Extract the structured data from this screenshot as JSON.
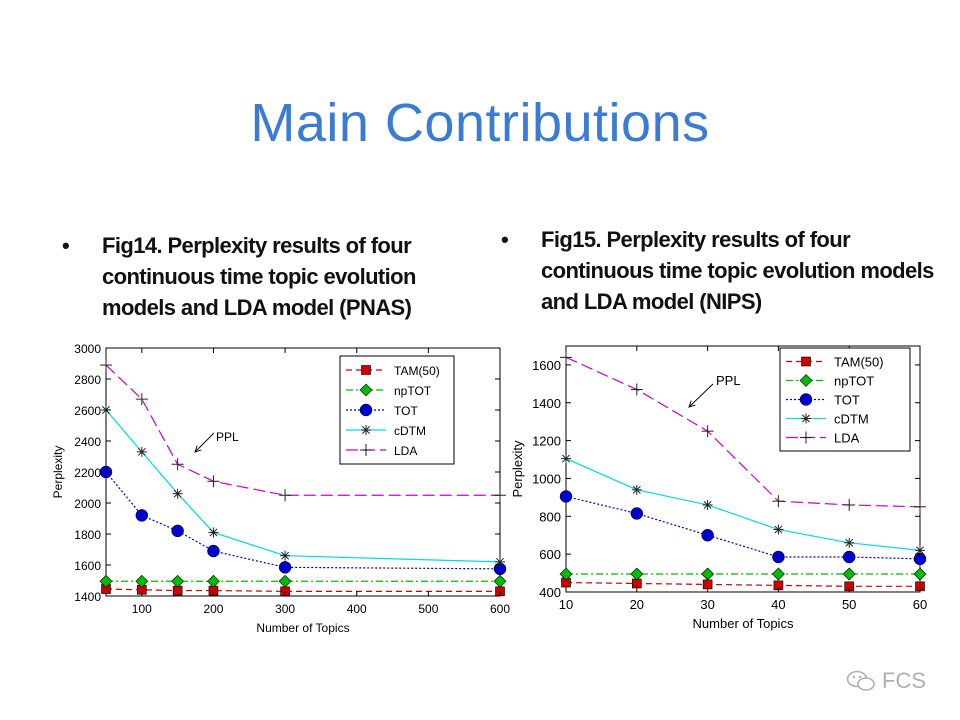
{
  "title": "Main Contributions",
  "captions": [
    {
      "bullet": "•",
      "text": "Fig14. Perplexity results of four continuous time topic evolution models and LDA model (PNAS)"
    },
    {
      "bullet": "•",
      "text": "Fig15. Perplexity results of four continuous time topic evolution models and LDA model (NIPS)"
    }
  ],
  "watermark": "FCS",
  "chart_data": [
    {
      "type": "line",
      "xlabel": "Number of Topics",
      "ylabel": "Perplexity",
      "xlim": [
        50,
        600
      ],
      "ylim": [
        1400,
        3000
      ],
      "xticks": [
        100,
        200,
        300,
        400,
        500,
        600
      ],
      "yticks": [
        1400,
        1600,
        1800,
        2000,
        2200,
        2400,
        2600,
        2800,
        3000
      ],
      "grid": false,
      "legend_position": "top-right",
      "annotation": "PPL",
      "series": [
        {
          "name": "TAM(50)",
          "color": "#cc0000",
          "dash": "dashed",
          "marker": "square",
          "x": [
            50,
            100,
            150,
            200,
            300,
            600
          ],
          "y": [
            1445,
            1440,
            1435,
            1435,
            1430,
            1430
          ]
        },
        {
          "name": "npTOT",
          "color": "#00bb00",
          "dash": "dashdot",
          "marker": "diamond",
          "x": [
            50,
            100,
            150,
            200,
            300,
            600
          ],
          "y": [
            1495,
            1495,
            1495,
            1495,
            1495,
            1495
          ]
        },
        {
          "name": "TOT",
          "color": "#0000cc",
          "dash": "dotted",
          "marker": "circle",
          "x": [
            50,
            100,
            150,
            200,
            300,
            600
          ],
          "y": [
            2200,
            1920,
            1820,
            1690,
            1585,
            1575
          ]
        },
        {
          "name": "cDTM",
          "color": "#00dddd",
          "dash": "solid",
          "marker": "star",
          "x": [
            50,
            100,
            150,
            200,
            300,
            600
          ],
          "y": [
            2600,
            2330,
            2060,
            1810,
            1660,
            1620
          ]
        },
        {
          "name": "LDA",
          "color": "#cc00cc",
          "dash": "longdash",
          "marker": "plus",
          "x": [
            50,
            100,
            150,
            200,
            300,
            600
          ],
          "y": [
            2890,
            2670,
            2250,
            2140,
            2050,
            2050
          ]
        }
      ]
    },
    {
      "type": "line",
      "xlabel": "Number of Topics",
      "ylabel": "Perplexity",
      "xlim": [
        10,
        60
      ],
      "ylim": [
        400,
        1700
      ],
      "xticks": [
        10,
        20,
        30,
        40,
        50,
        60
      ],
      "yticks": [
        400,
        600,
        800,
        1000,
        1200,
        1400,
        1600
      ],
      "grid": false,
      "legend_position": "top-right",
      "annotation": "PPL",
      "series": [
        {
          "name": "TAM(50)",
          "color": "#cc0000",
          "dash": "dashed",
          "marker": "square",
          "x": [
            10,
            20,
            30,
            40,
            50,
            60
          ],
          "y": [
            450,
            445,
            440,
            435,
            430,
            430
          ]
        },
        {
          "name": "npTOT",
          "color": "#00bb00",
          "dash": "dashdot",
          "marker": "diamond",
          "x": [
            10,
            20,
            30,
            40,
            50,
            60
          ],
          "y": [
            495,
            495,
            495,
            495,
            495,
            495
          ]
        },
        {
          "name": "TOT",
          "color": "#0000cc",
          "dash": "dotted",
          "marker": "circle",
          "x": [
            10,
            20,
            30,
            40,
            50,
            60
          ],
          "y": [
            905,
            815,
            700,
            585,
            585,
            575
          ]
        },
        {
          "name": "cDTM",
          "color": "#00dddd",
          "dash": "solid",
          "marker": "star",
          "x": [
            10,
            20,
            30,
            40,
            50,
            60
          ],
          "y": [
            1105,
            940,
            860,
            730,
            660,
            620
          ]
        },
        {
          "name": "LDA",
          "color": "#cc00cc",
          "dash": "longdash",
          "marker": "plus",
          "x": [
            10,
            20,
            30,
            40,
            50,
            60
          ],
          "y": [
            1640,
            1470,
            1250,
            880,
            860,
            850
          ]
        }
      ]
    }
  ]
}
